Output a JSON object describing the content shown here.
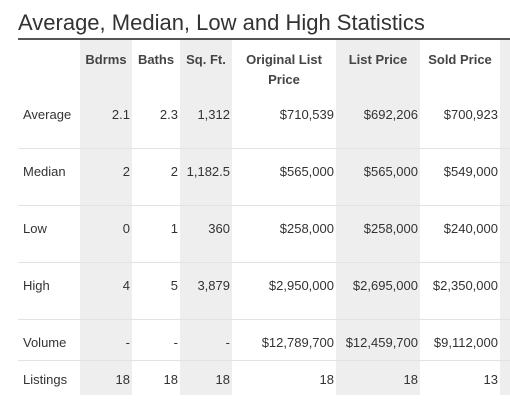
{
  "title": "Average, Median, Low and High Statistics",
  "table": {
    "headers": [
      "Bdrms",
      "Baths",
      "Sq. Ft.",
      "Original List Price",
      "List Price",
      "Sold Price"
    ],
    "rows": [
      {
        "label": "Average",
        "cells": [
          "2.1",
          "2.3",
          "1,312",
          "$710,539",
          "$692,206",
          "$700,923"
        ]
      },
      {
        "label": "Median",
        "cells": [
          "2",
          "2",
          "1,182.5",
          "$565,000",
          "$565,000",
          "$549,000"
        ]
      },
      {
        "label": "Low",
        "cells": [
          "0",
          "1",
          "360",
          "$258,000",
          "$258,000",
          "$240,000"
        ]
      },
      {
        "label": "High",
        "cells": [
          "4",
          "5",
          "3,879",
          "$2,950,000",
          "$2,695,000",
          "$2,350,000"
        ]
      },
      {
        "label": "Volume",
        "cells": [
          "-",
          "-",
          "-",
          "$12,789,700",
          "$12,459,700",
          "$9,112,000"
        ]
      },
      {
        "label": "Listings",
        "cells": [
          "18",
          "18",
          "18",
          "18",
          "18",
          "13"
        ]
      }
    ]
  }
}
